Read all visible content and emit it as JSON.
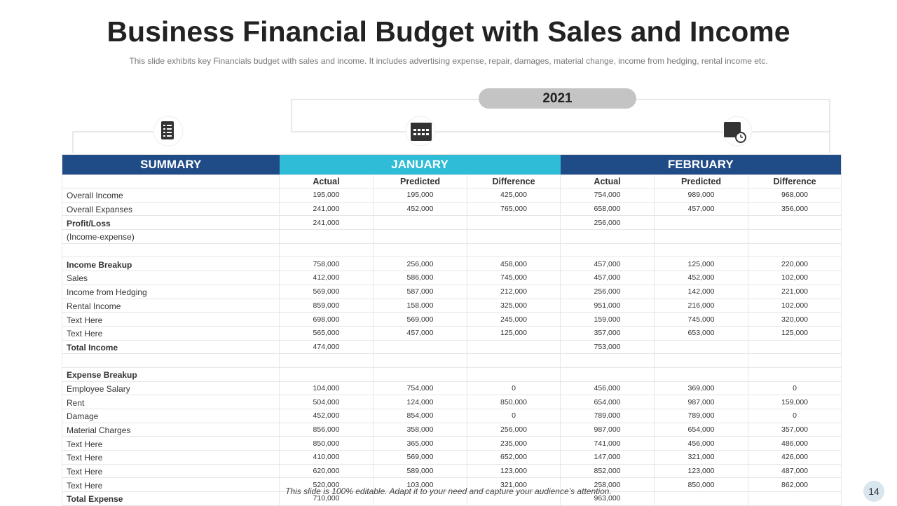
{
  "title": "Business Financial Budget with Sales and Income",
  "subtitle": "This slide exhibits key Financials budget with sales and income. It includes advertising  expense, repair, damages, material change, income from hedging, rental income etc.",
  "year": "2021",
  "table": {
    "groups": [
      {
        "label": "SUMMARY",
        "color": "#1f4b86"
      },
      {
        "label": "JANUARY",
        "color": "#2fbcd7"
      },
      {
        "label": "FEBRUARY",
        "color": "#1f4b86"
      }
    ],
    "columns": [
      "Actual",
      "Predicted",
      "Difference",
      "Actual",
      "Predicted",
      "Difference"
    ],
    "rows": [
      {
        "label": "Overall Income",
        "cells": [
          "195,000",
          "195,000",
          "425,000",
          "754,000",
          "989,000",
          "968,000"
        ]
      },
      {
        "label": "Overall Expanses",
        "cells": [
          "241,000",
          "452,000",
          "765,000",
          "658,000",
          "457,000",
          "356,000"
        ]
      },
      {
        "label": "Profit/Loss",
        "bold": true,
        "cells": [
          "241,000",
          null,
          null,
          "256,000",
          null,
          null
        ]
      },
      {
        "label": "(Income-expense)",
        "cells": [
          null,
          null,
          null,
          null,
          null,
          null
        ]
      },
      null,
      {
        "label": "Income Breakup",
        "bold": true,
        "cells": [
          "758,000",
          "256,000",
          "458,000",
          "457,000",
          "125,000",
          "220,000"
        ]
      },
      {
        "label": "Sales",
        "cells": [
          "412,000",
          "586,000",
          "745,000",
          "457,000",
          "452,000",
          "102,000"
        ]
      },
      {
        "label": "Income from Hedging",
        "cells": [
          "569,000",
          "587,000",
          "212,000",
          "256,000",
          "142,000",
          "221,000"
        ]
      },
      {
        "label": "Rental Income",
        "cells": [
          "859,000",
          "158,000",
          "325,000",
          "951,000",
          "216,000",
          "102,000"
        ]
      },
      {
        "label": "Text Here",
        "cells": [
          "698,000",
          "569,000",
          "245,000",
          "159,000",
          "745,000",
          "320,000"
        ]
      },
      {
        "label": "Text Here",
        "cells": [
          "565,000",
          "457,000",
          "125,000",
          "357,000",
          "653,000",
          "125,000"
        ]
      },
      {
        "label": "Total Income",
        "bold": true,
        "cells": [
          "474,000",
          null,
          null,
          "753,000",
          null,
          null
        ]
      },
      null,
      {
        "label": "Expense Breakup",
        "bold": true,
        "cells": [
          null,
          null,
          null,
          null,
          null,
          null
        ]
      },
      {
        "label": "Employee Salary",
        "cells": [
          "104,000",
          "754,000",
          "0",
          "456,000",
          "369,000",
          "0"
        ]
      },
      {
        "label": "Rent",
        "cells": [
          "504,000",
          "124,000",
          "850,000",
          "654,000",
          "987,000",
          "159,000"
        ]
      },
      {
        "label": "Damage",
        "cells": [
          "452,000",
          "854,000",
          "0",
          "789,000",
          "789,000",
          "0"
        ]
      },
      {
        "label": "Material Charges",
        "cells": [
          "856,000",
          "358,000",
          "256,000",
          "987,000",
          "654,000",
          "357,000"
        ]
      },
      {
        "label": "Text Here",
        "cells": [
          "850,000",
          "365,000",
          "235,000",
          "741,000",
          "456,000",
          "486,000"
        ]
      },
      {
        "label": "Text Here",
        "cells": [
          "410,000",
          "569,000",
          "652,000",
          "147,000",
          "321,000",
          "426,000"
        ]
      },
      {
        "label": "Text Here",
        "cells": [
          "620,000",
          "589,000",
          "123,000",
          "852,000",
          "123,000",
          "487,000"
        ]
      },
      {
        "label": "Text Here",
        "cells": [
          "520,000",
          "103,000",
          "321,000",
          "258,000",
          "850,000",
          "862,000"
        ]
      },
      {
        "label": "Total Expense",
        "bold": true,
        "cells": [
          "710,000",
          null,
          null,
          "963,000",
          null,
          null
        ]
      }
    ]
  },
  "footer": "This slide is 100% editable. Adapt it to your need and capture your audience’s attention.",
  "page_number": "14"
}
